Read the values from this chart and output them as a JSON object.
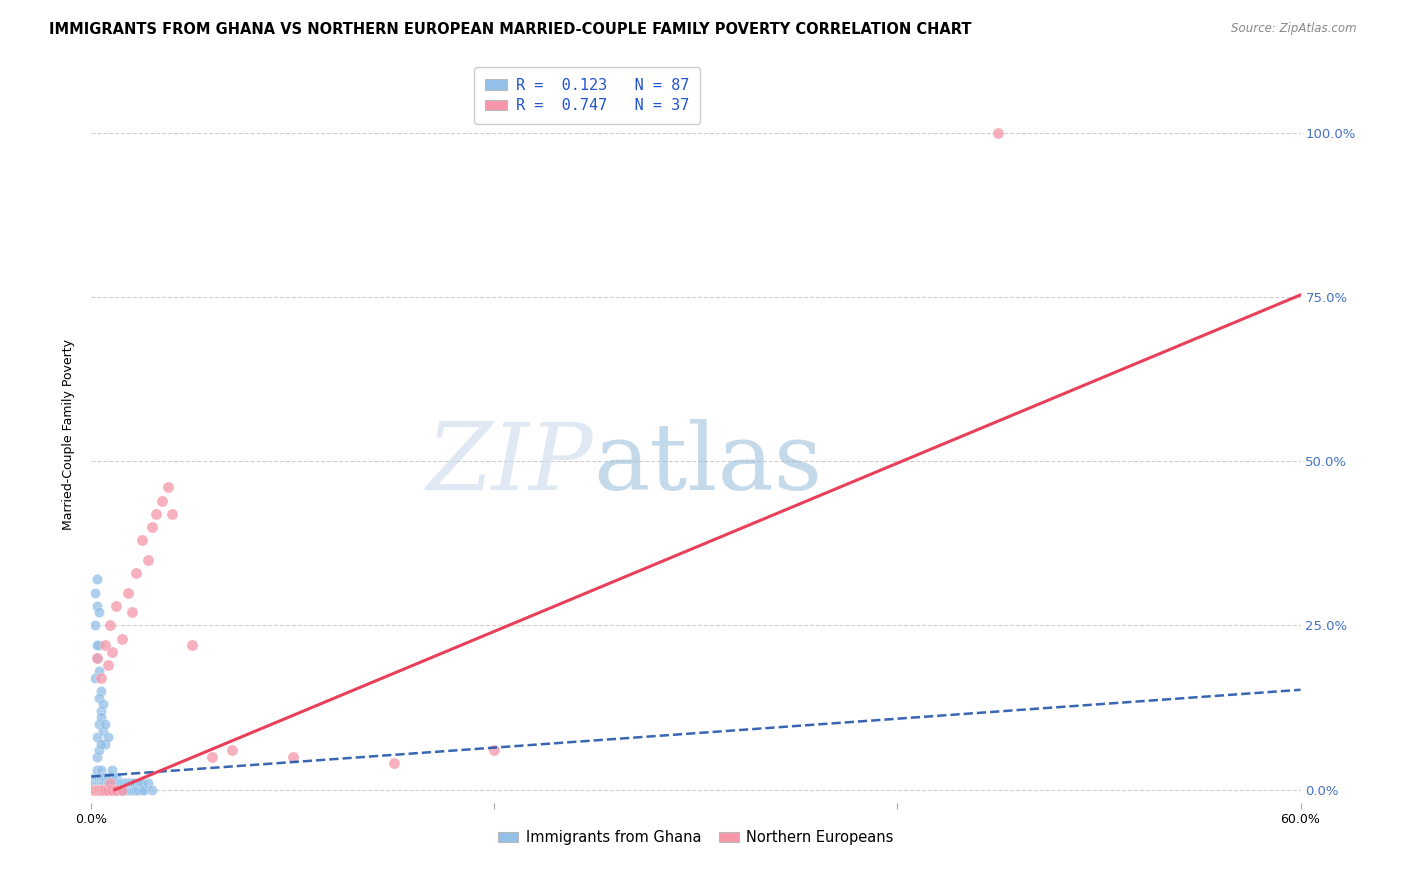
{
  "title": "IMMIGRANTS FROM GHANA VS NORTHERN EUROPEAN MARRIED-COUPLE FAMILY POVERTY CORRELATION CHART",
  "source": "Source: ZipAtlas.com",
  "ylabel": "Married-Couple Family Poverty",
  "xlim": [
    0,
    0.6
  ],
  "ylim": [
    -0.02,
    1.1
  ],
  "ytick_labels": [
    "0.0%",
    "25.0%",
    "50.0%",
    "75.0%",
    "100.0%"
  ],
  "ytick_vals": [
    0.0,
    0.25,
    0.5,
    0.75,
    1.0
  ],
  "xtick_labels": [
    "0.0%",
    "",
    "",
    "60.0%"
  ],
  "xtick_vals": [
    0.0,
    0.2,
    0.4,
    0.6
  ],
  "ghana_color": "#92c0e8",
  "northern_color": "#f597a8",
  "ghana_line_color": "#2255aa",
  "northern_line_color": "#e8405a",
  "ghana_line_intercept": 0.02,
  "ghana_line_slope": 0.22,
  "northern_line_intercept": -0.015,
  "northern_line_slope": 1.28,
  "background_color": "#ffffff",
  "grid_color": "#d0d0d0",
  "title_fontsize": 10.5,
  "right_tick_color": "#4472c4",
  "ghana_scatter": [
    [
      0.001,
      0.0
    ],
    [
      0.001,
      0.01
    ],
    [
      0.002,
      0.0
    ],
    [
      0.002,
      0.01
    ],
    [
      0.002,
      0.02
    ],
    [
      0.003,
      0.0
    ],
    [
      0.003,
      0.01
    ],
    [
      0.003,
      0.02
    ],
    [
      0.003,
      0.03
    ],
    [
      0.004,
      0.0
    ],
    [
      0.004,
      0.01
    ],
    [
      0.004,
      0.02
    ],
    [
      0.005,
      0.0
    ],
    [
      0.005,
      0.01
    ],
    [
      0.005,
      0.02
    ],
    [
      0.005,
      0.03
    ],
    [
      0.006,
      0.0
    ],
    [
      0.006,
      0.01
    ],
    [
      0.006,
      0.02
    ],
    [
      0.007,
      0.0
    ],
    [
      0.007,
      0.01
    ],
    [
      0.007,
      0.02
    ],
    [
      0.008,
      0.0
    ],
    [
      0.008,
      0.01
    ],
    [
      0.008,
      0.02
    ],
    [
      0.009,
      0.0
    ],
    [
      0.009,
      0.01
    ],
    [
      0.009,
      0.02
    ],
    [
      0.01,
      0.0
    ],
    [
      0.01,
      0.01
    ],
    [
      0.01,
      0.02
    ],
    [
      0.01,
      0.03
    ],
    [
      0.011,
      0.0
    ],
    [
      0.011,
      0.01
    ],
    [
      0.012,
      0.0
    ],
    [
      0.012,
      0.01
    ],
    [
      0.012,
      0.02
    ],
    [
      0.013,
      0.0
    ],
    [
      0.013,
      0.01
    ],
    [
      0.014,
      0.0
    ],
    [
      0.014,
      0.01
    ],
    [
      0.015,
      0.0
    ],
    [
      0.015,
      0.01
    ],
    [
      0.016,
      0.0
    ],
    [
      0.016,
      0.01
    ],
    [
      0.017,
      0.0
    ],
    [
      0.017,
      0.01
    ],
    [
      0.018,
      0.0
    ],
    [
      0.018,
      0.01
    ],
    [
      0.019,
      0.0
    ],
    [
      0.019,
      0.01
    ],
    [
      0.02,
      0.0
    ],
    [
      0.02,
      0.01
    ],
    [
      0.021,
      0.0
    ],
    [
      0.021,
      0.01
    ],
    [
      0.022,
      0.0
    ],
    [
      0.023,
      0.0
    ],
    [
      0.024,
      0.01
    ],
    [
      0.025,
      0.0
    ],
    [
      0.025,
      0.01
    ],
    [
      0.026,
      0.0
    ],
    [
      0.028,
      0.01
    ],
    [
      0.03,
      0.0
    ],
    [
      0.003,
      0.2
    ],
    [
      0.004,
      0.22
    ],
    [
      0.003,
      0.28
    ],
    [
      0.004,
      0.18
    ],
    [
      0.005,
      0.15
    ],
    [
      0.002,
      0.17
    ],
    [
      0.003,
      0.08
    ],
    [
      0.004,
      0.1
    ],
    [
      0.005,
      0.12
    ],
    [
      0.002,
      0.25
    ],
    [
      0.003,
      0.22
    ],
    [
      0.006,
      0.09
    ],
    [
      0.007,
      0.07
    ],
    [
      0.004,
      0.14
    ],
    [
      0.005,
      0.11
    ],
    [
      0.006,
      0.13
    ],
    [
      0.007,
      0.1
    ],
    [
      0.008,
      0.08
    ],
    [
      0.003,
      0.05
    ],
    [
      0.004,
      0.06
    ],
    [
      0.005,
      0.07
    ],
    [
      0.002,
      0.3
    ],
    [
      0.003,
      0.32
    ],
    [
      0.004,
      0.27
    ]
  ],
  "northern_scatter": [
    [
      0.001,
      0.0
    ],
    [
      0.002,
      0.0
    ],
    [
      0.003,
      0.0
    ],
    [
      0.004,
      0.0
    ],
    [
      0.005,
      0.0
    ],
    [
      0.006,
      0.0
    ],
    [
      0.007,
      0.0
    ],
    [
      0.008,
      0.0
    ],
    [
      0.009,
      0.01
    ],
    [
      0.01,
      0.0
    ],
    [
      0.012,
      0.0
    ],
    [
      0.015,
      0.0
    ],
    [
      0.003,
      0.2
    ],
    [
      0.005,
      0.17
    ],
    [
      0.007,
      0.22
    ],
    [
      0.008,
      0.19
    ],
    [
      0.009,
      0.25
    ],
    [
      0.01,
      0.21
    ],
    [
      0.012,
      0.28
    ],
    [
      0.015,
      0.23
    ],
    [
      0.018,
      0.3
    ],
    [
      0.02,
      0.27
    ],
    [
      0.022,
      0.33
    ],
    [
      0.025,
      0.38
    ],
    [
      0.028,
      0.35
    ],
    [
      0.03,
      0.4
    ],
    [
      0.032,
      0.42
    ],
    [
      0.035,
      0.44
    ],
    [
      0.038,
      0.46
    ],
    [
      0.04,
      0.42
    ],
    [
      0.05,
      0.22
    ],
    [
      0.06,
      0.05
    ],
    [
      0.07,
      0.06
    ],
    [
      0.1,
      0.05
    ],
    [
      0.15,
      0.04
    ],
    [
      0.2,
      0.06
    ],
    [
      0.45,
      1.0
    ]
  ]
}
